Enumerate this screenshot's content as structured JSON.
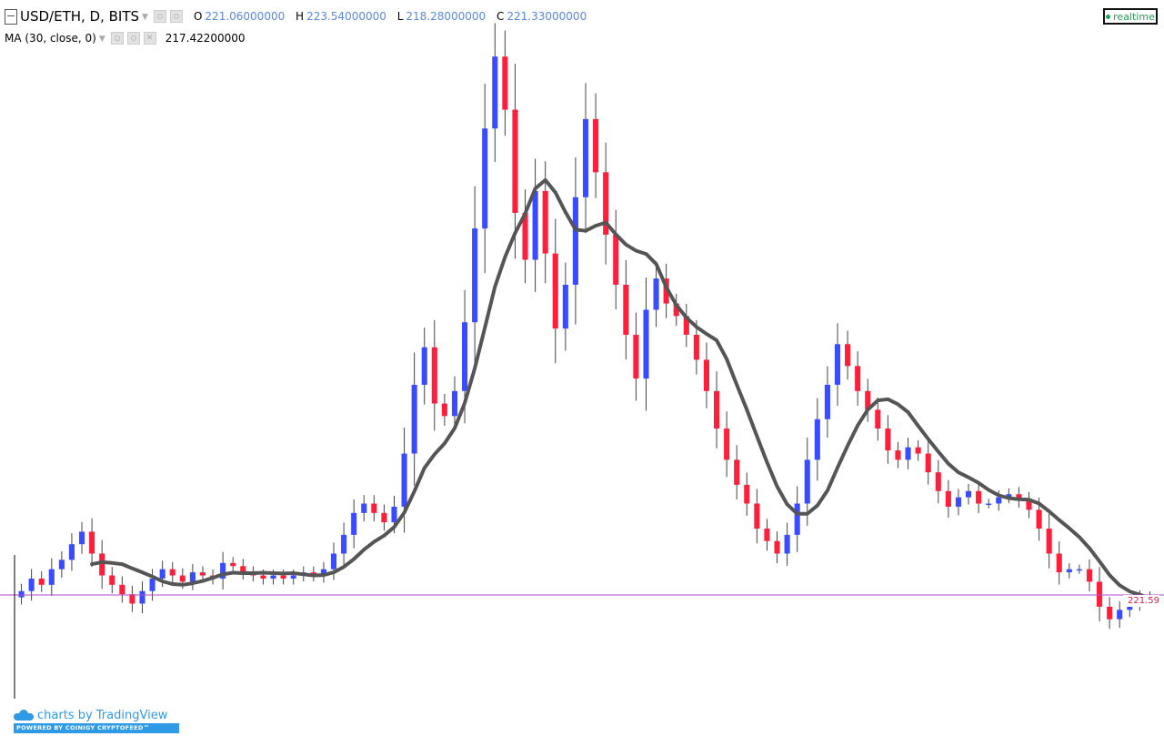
{
  "header": {
    "symbol": "USD/ETH, D, BITS",
    "ohlc": [
      {
        "key": "O",
        "value": "221.06000000"
      },
      {
        "key": "H",
        "value": "223.54000000"
      },
      {
        "key": "L",
        "value": "218.28000000"
      },
      {
        "key": "C",
        "value": "221.33000000"
      }
    ],
    "indicator_label": "MA (30, close, 0)",
    "indicator_value": "217.42200000"
  },
  "realtime_label": "realtime",
  "branding": {
    "line1": "charts by TradingView",
    "line2": "POWERED BY COINIGY CRYPTOFEED™"
  },
  "colors": {
    "up": "#3a4cff",
    "down": "#ff1f3b",
    "ma": "#555555",
    "price_line": "#b04ac8",
    "price_label": "#d42052"
  },
  "chart_data": {
    "type": "candlestick",
    "title": "USD/ETH, D, BITS",
    "last_price_label": "221.59",
    "grid": false,
    "candles_approx": [
      {
        "o": 222,
        "c": 224
      },
      {
        "o": 224,
        "c": 228
      },
      {
        "o": 228,
        "c": 226
      },
      {
        "o": 226,
        "c": 231
      },
      {
        "o": 231,
        "c": 234
      },
      {
        "o": 234,
        "c": 239
      },
      {
        "o": 239,
        "c": 243
      },
      {
        "o": 243,
        "c": 236
      },
      {
        "o": 236,
        "c": 229
      },
      {
        "o": 229,
        "c": 226
      },
      {
        "o": 226,
        "c": 223
      },
      {
        "o": 223,
        "c": 220
      },
      {
        "o": 220,
        "c": 224
      },
      {
        "o": 224,
        "c": 228
      },
      {
        "o": 228,
        "c": 231
      },
      {
        "o": 231,
        "c": 229
      },
      {
        "o": 229,
        "c": 227
      },
      {
        "o": 227,
        "c": 230
      },
      {
        "o": 230,
        "c": 229
      },
      {
        "o": 229,
        "c": 228
      },
      {
        "o": 228,
        "c": 233
      },
      {
        "o": 233,
        "c": 232
      },
      {
        "o": 232,
        "c": 230
      },
      {
        "o": 230,
        "c": 229
      },
      {
        "o": 229,
        "c": 228
      },
      {
        "o": 228,
        "c": 229
      },
      {
        "o": 229,
        "c": 228
      },
      {
        "o": 228,
        "c": 229
      },
      {
        "o": 229,
        "c": 230
      },
      {
        "o": 230,
        "c": 229
      },
      {
        "o": 229,
        "c": 231
      },
      {
        "o": 231,
        "c": 236
      },
      {
        "o": 236,
        "c": 242
      },
      {
        "o": 242,
        "c": 249
      },
      {
        "o": 249,
        "c": 252
      },
      {
        "o": 252,
        "c": 249
      },
      {
        "o": 249,
        "c": 246
      },
      {
        "o": 246,
        "c": 251
      },
      {
        "o": 251,
        "c": 268
      },
      {
        "o": 268,
        "c": 290
      },
      {
        "o": 290,
        "c": 302
      },
      {
        "o": 302,
        "c": 284
      },
      {
        "o": 284,
        "c": 280
      },
      {
        "o": 280,
        "c": 288
      },
      {
        "o": 288,
        "c": 310
      },
      {
        "o": 310,
        "c": 340
      },
      {
        "o": 340,
        "c": 372
      },
      {
        "o": 372,
        "c": 395
      },
      {
        "o": 395,
        "c": 378
      },
      {
        "o": 378,
        "c": 345
      },
      {
        "o": 345,
        "c": 330
      },
      {
        "o": 330,
        "c": 352
      },
      {
        "o": 352,
        "c": 332
      },
      {
        "o": 332,
        "c": 308
      },
      {
        "o": 308,
        "c": 322
      },
      {
        "o": 322,
        "c": 350
      },
      {
        "o": 350,
        "c": 375
      },
      {
        "o": 375,
        "c": 358
      },
      {
        "o": 358,
        "c": 338
      },
      {
        "o": 338,
        "c": 322
      },
      {
        "o": 322,
        "c": 306
      },
      {
        "o": 306,
        "c": 292
      },
      {
        "o": 292,
        "c": 314
      },
      {
        "o": 314,
        "c": 324
      },
      {
        "o": 324,
        "c": 316
      },
      {
        "o": 316,
        "c": 312
      },
      {
        "o": 312,
        "c": 306
      },
      {
        "o": 306,
        "c": 298
      },
      {
        "o": 298,
        "c": 288
      },
      {
        "o": 288,
        "c": 276
      },
      {
        "o": 276,
        "c": 266
      },
      {
        "o": 266,
        "c": 258
      },
      {
        "o": 258,
        "c": 252
      },
      {
        "o": 252,
        "c": 244
      },
      {
        "o": 244,
        "c": 240
      },
      {
        "o": 240,
        "c": 236
      },
      {
        "o": 236,
        "c": 242
      },
      {
        "o": 242,
        "c": 252
      },
      {
        "o": 252,
        "c": 266
      },
      {
        "o": 266,
        "c": 279
      },
      {
        "o": 279,
        "c": 290
      },
      {
        "o": 290,
        "c": 303
      },
      {
        "o": 303,
        "c": 296
      },
      {
        "o": 296,
        "c": 288
      },
      {
        "o": 288,
        "c": 282
      },
      {
        "o": 282,
        "c": 276
      },
      {
        "o": 276,
        "c": 269
      },
      {
        "o": 269,
        "c": 266
      },
      {
        "o": 266,
        "c": 270
      },
      {
        "o": 270,
        "c": 268
      },
      {
        "o": 268,
        "c": 262
      },
      {
        "o": 262,
        "c": 256
      },
      {
        "o": 256,
        "c": 251
      },
      {
        "o": 251,
        "c": 254
      },
      {
        "o": 254,
        "c": 256
      },
      {
        "o": 256,
        "c": 252
      },
      {
        "o": 252,
        "c": 252
      },
      {
        "o": 252,
        "c": 254
      },
      {
        "o": 254,
        "c": 255
      },
      {
        "o": 255,
        "c": 253
      },
      {
        "o": 253,
        "c": 250
      },
      {
        "o": 250,
        "c": 244
      },
      {
        "o": 244,
        "c": 236
      },
      {
        "o": 236,
        "c": 230
      },
      {
        "o": 230,
        "c": 231
      },
      {
        "o": 231,
        "c": 231
      },
      {
        "o": 231,
        "c": 227
      },
      {
        "o": 227,
        "c": 219
      },
      {
        "o": 219,
        "c": 215
      },
      {
        "o": 215,
        "c": 218
      },
      {
        "o": 218,
        "c": 220
      },
      {
        "o": 220,
        "c": 222
      },
      {
        "o": 222,
        "c": 221
      }
    ],
    "moving_average": {
      "label": "MA (30, close, 0)"
    }
  }
}
